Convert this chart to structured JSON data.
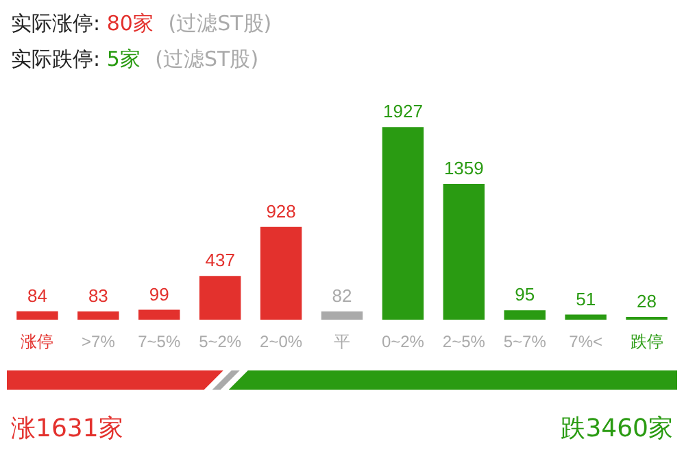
{
  "chart_data": {
    "type": "bar",
    "categories": [
      "涨停",
      ">7%",
      "7~5%",
      "5~2%",
      "2~0%",
      "平",
      "0~2%",
      "2~5%",
      "5~7%",
      "7%<",
      "跌停"
    ],
    "values": [
      84,
      83,
      99,
      437,
      928,
      82,
      1927,
      1359,
      95,
      51,
      28
    ],
    "colors": [
      "#e3312d",
      "#e3312d",
      "#e3312d",
      "#e3312d",
      "#e3312d",
      "#aaaaaa",
      "#2a9b12",
      "#2a9b12",
      "#2a9b12",
      "#2a9b12",
      "#2a9b12"
    ],
    "data_labels": true,
    "annotations": [
      "实际涨停:",
      "80家",
      "(过滤ST股)",
      "实际跌停:",
      "5家",
      "(过滤ST股)",
      "涨1631家",
      "跌3460家"
    ]
  }
}
